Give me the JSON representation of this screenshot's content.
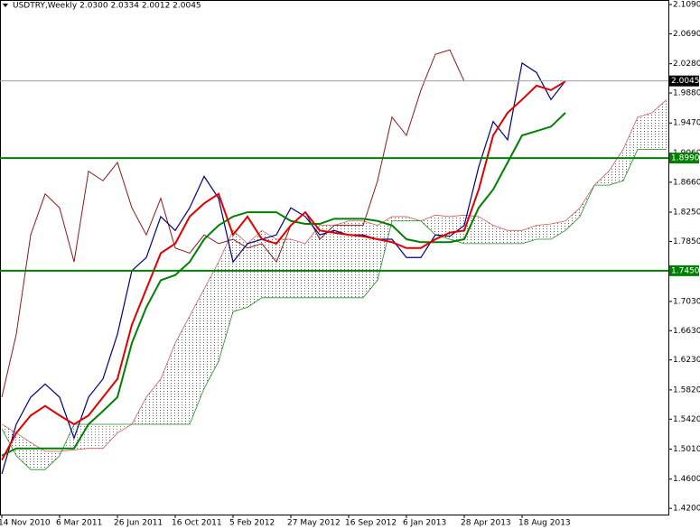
{
  "chart_data": {
    "type": "ichimoku",
    "title": "USDTRY,Weekly  2.0300 2.0334 2.0012 2.0045",
    "categories": [
      "14 Nov 2010",
      null,
      null,
      null,
      "6 Mar 2011",
      null,
      null,
      null,
      "26 Jun 2011",
      null,
      null,
      null,
      "16 Oct 2011",
      null,
      null,
      null,
      "5 Feb 2012",
      null,
      null,
      null,
      "27 May 2012",
      null,
      null,
      null,
      "16 Sep 2012",
      null,
      null,
      null,
      "6 Jan 2013",
      null,
      null,
      null,
      "28 Apr 2013",
      null,
      null,
      null,
      "18 Aug 2013",
      null,
      null,
      null,
      null,
      null,
      null,
      null,
      null,
      null,
      null
    ],
    "price": {
      "color": "#000080",
      "values": [
        1.467,
        1.535,
        1.572,
        1.59,
        1.572,
        1.516,
        1.572,
        1.597,
        1.658,
        1.745,
        1.763,
        1.819,
        1.8,
        1.831,
        1.874,
        1.844,
        1.757,
        1.782,
        1.788,
        1.794,
        1.831,
        1.819,
        1.794,
        1.8,
        1.794,
        1.794,
        1.788,
        1.788,
        1.763,
        1.763,
        1.794,
        1.792,
        1.807,
        1.887,
        1.949,
        1.924,
        2.029,
        2.016,
        1.979,
        2.0045,
        null,
        null,
        null,
        null,
        null,
        null,
        null
      ]
    },
    "tenkan": {
      "color": "#e00000",
      "values": [
        1.486,
        1.523,
        1.547,
        1.56,
        1.547,
        1.535,
        1.547,
        1.572,
        1.597,
        1.671,
        1.72,
        1.769,
        1.782,
        1.819,
        1.837,
        1.85,
        1.794,
        1.819,
        1.788,
        1.782,
        1.807,
        1.825,
        1.8,
        1.797,
        1.794,
        1.792,
        1.788,
        1.784,
        1.776,
        1.776,
        1.788,
        1.797,
        1.8,
        1.856,
        1.93,
        1.961,
        1.979,
        1.998,
        1.992,
        2.004,
        null,
        null,
        null,
        null,
        null,
        null,
        null
      ]
    },
    "kijun": {
      "color": "#008000",
      "values": [
        1.492,
        1.502,
        1.502,
        1.502,
        1.502,
        1.502,
        1.535,
        1.553,
        1.572,
        1.646,
        1.695,
        1.732,
        1.739,
        1.757,
        1.788,
        1.807,
        1.819,
        1.825,
        1.825,
        1.825,
        1.813,
        1.809,
        1.809,
        1.816,
        1.816,
        1.816,
        1.813,
        1.807,
        1.788,
        1.784,
        1.784,
        1.784,
        1.788,
        1.831,
        1.856,
        1.893,
        1.93,
        1.936,
        1.942,
        1.961,
        null,
        null,
        null,
        null,
        null,
        null,
        null
      ]
    },
    "chikou": {
      "color": "#8b1a1a",
      "values": [
        1.572,
        1.658,
        1.794,
        1.85,
        1.831,
        1.757,
        1.881,
        1.868,
        1.893,
        1.831,
        1.794,
        1.844,
        1.776,
        1.769,
        1.794,
        1.782,
        1.788,
        1.776,
        1.782,
        1.757,
        1.807,
        1.825,
        1.788,
        1.807,
        1.807,
        1.807,
        1.868,
        1.955,
        1.93,
        1.992,
        2.041,
        2.047,
        2.004,
        null,
        null,
        null,
        null,
        null,
        null,
        null,
        null,
        null,
        null,
        null,
        null,
        null,
        null
      ]
    },
    "senkou_a": {
      "color": "#cd5c5c",
      "values": [
        1.535,
        1.523,
        1.51,
        1.498,
        1.498,
        1.5,
        1.502,
        1.502,
        1.523,
        1.535,
        1.572,
        1.597,
        1.646,
        1.683,
        1.72,
        1.757,
        1.8,
        1.782,
        1.8,
        1.788,
        1.788,
        1.782,
        1.807,
        1.807,
        1.813,
        1.813,
        1.807,
        1.819,
        1.819,
        1.813,
        1.821,
        1.819,
        1.821,
        1.819,
        1.807,
        1.8,
        1.8,
        1.807,
        1.809,
        1.813,
        1.831,
        1.862,
        1.881,
        1.911,
        1.955,
        1.961,
        1.979
      ]
    },
    "senkou_b": {
      "color": "#228b22",
      "values": [
        1.529,
        1.492,
        1.473,
        1.473,
        1.492,
        1.535,
        1.535,
        1.535,
        1.535,
        1.535,
        1.535,
        1.535,
        1.535,
        1.535,
        1.584,
        1.621,
        1.689,
        1.695,
        1.708,
        1.708,
        1.708,
        1.708,
        1.708,
        1.708,
        1.708,
        1.708,
        1.732,
        1.813,
        1.813,
        1.813,
        1.794,
        1.788,
        1.782,
        1.782,
        1.782,
        1.782,
        1.782,
        1.788,
        1.788,
        1.8,
        1.819,
        1.862,
        1.862,
        1.868,
        1.911,
        1.911,
        1.911
      ]
    },
    "hlines": [
      {
        "value": 1.899,
        "label": "1.8990",
        "color": "#008000"
      },
      {
        "value": 1.745,
        "label": "1.7450",
        "color": "#008000"
      },
      {
        "value": 2.0045,
        "label": "2.0045",
        "color": "#a0a0a0"
      }
    ],
    "ylim": [
      1.4115,
      2.1152
    ],
    "yticks": [
      {
        "value": 2.109,
        "label": "2.1090"
      },
      {
        "value": 2.069,
        "label": "2.0690"
      },
      {
        "value": 2.028,
        "label": "2.0280"
      },
      {
        "value": 1.988,
        "label": "1.9880"
      },
      {
        "value": 1.947,
        "label": "1.9470"
      },
      {
        "value": 1.906,
        "label": "1.9060"
      },
      {
        "value": 1.866,
        "label": "1.8660"
      },
      {
        "value": 1.825,
        "label": "1.8250"
      },
      {
        "value": 1.785,
        "label": "1.7850"
      },
      {
        "value": 1.703,
        "label": "1.7030"
      },
      {
        "value": 1.663,
        "label": "1.6630"
      },
      {
        "value": 1.623,
        "label": "1.6230"
      },
      {
        "value": 1.582,
        "label": "1.5820"
      },
      {
        "value": 1.542,
        "label": "1.5420"
      },
      {
        "value": 1.501,
        "label": "1.5010"
      },
      {
        "value": 1.46,
        "label": "1.4600"
      },
      {
        "value": 1.42,
        "label": "1.4200"
      }
    ]
  }
}
